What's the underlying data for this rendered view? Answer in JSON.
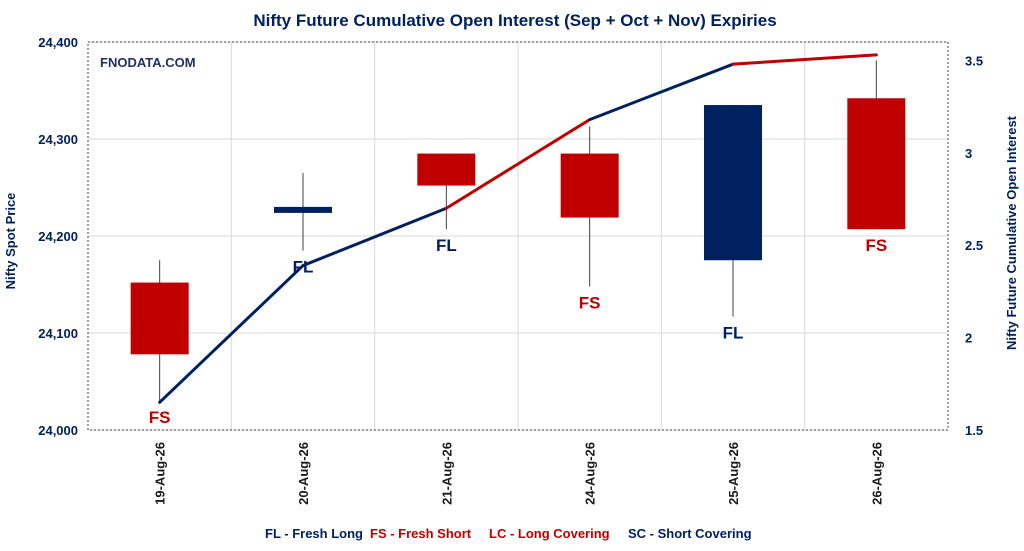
{
  "chart_data": {
    "type": "candlestick+line",
    "title": "Nifty Future Cumulative Open Interest (Sep + Oct + Nov) Expiries",
    "watermark": "FNODATA.COM",
    "ylabel_left": "Nifty Spot Price",
    "ylabel_right": "Nifty Future Cumulative Open Interest",
    "y_left_range": [
      24000,
      24400
    ],
    "y_left_ticks": [
      "24,000",
      "24,100",
      "24,200",
      "24,300",
      "24,400"
    ],
    "y_left_tick_values": [
      24000,
      24100,
      24200,
      24300,
      24400
    ],
    "y_right_range": [
      1.5,
      3.6
    ],
    "y_right_ticks": [
      "1.5",
      "2",
      "2.5",
      "3",
      "3.5"
    ],
    "y_right_tick_values": [
      1.5,
      2,
      2.5,
      3,
      3.5
    ],
    "categories": [
      "19-Aug-26",
      "20-Aug-26",
      "21-Aug-26",
      "24-Aug-26",
      "25-Aug-26",
      "26-Aug-26"
    ],
    "candles": [
      {
        "open": 24152,
        "high": 24175,
        "low": 24030,
        "close": 24078,
        "tag": "FS",
        "color": "#c00000"
      },
      {
        "open": 24230,
        "high": 24265,
        "low": 24185,
        "close": 24225,
        "tag": "FL",
        "color": "#002060"
      },
      {
        "open": 24252,
        "high": 24285,
        "low": 24207,
        "close": 24285,
        "tag": "FL",
        "color": "#c00000"
      },
      {
        "open": 24285,
        "high": 24313,
        "low": 24148,
        "close": 24219,
        "tag": "FS",
        "color": "#c00000"
      },
      {
        "open": 24175,
        "high": 24335,
        "low": 24117,
        "close": 24335,
        "tag": "FL",
        "color": "#002060"
      },
      {
        "open": 24342,
        "high": 24381,
        "low": 24207,
        "close": 24207,
        "tag": "FS",
        "color": "#c00000"
      }
    ],
    "oi_line": {
      "values": [
        1.65,
        2.39,
        2.7,
        3.18,
        3.48,
        3.53
      ],
      "segment_colors": [
        "#002060",
        "#002060",
        "#c00000",
        "#002060",
        "#c00000"
      ]
    },
    "legend": [
      {
        "text": "FL - Fresh Long",
        "color": "#002060"
      },
      {
        "text": "FS - Fresh Short",
        "color": "#c00000"
      },
      {
        "text": "LC - Long Covering",
        "color": "#c00000"
      },
      {
        "text": "SC - Short Covering",
        "color": "#002060"
      }
    ],
    "grid": true
  }
}
